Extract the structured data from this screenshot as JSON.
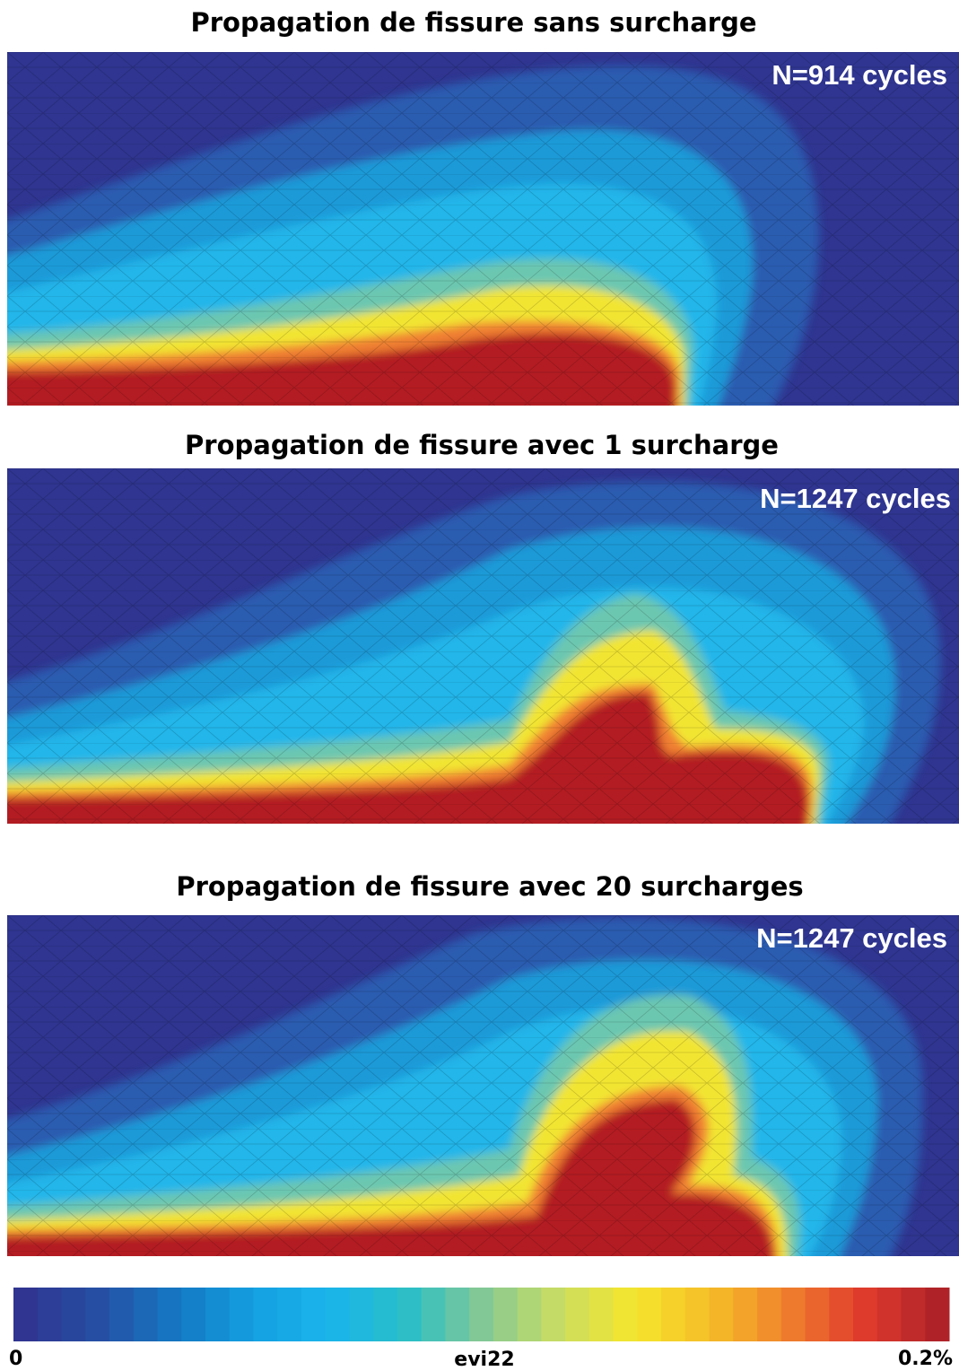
{
  "panels": [
    {
      "title": "Propagation de fissure sans surcharge",
      "cycles": "N=914 cycles"
    },
    {
      "title": "Propagation de fissure avec 1 surcharge",
      "cycles": "N=1247 cycles"
    },
    {
      "title": "Propagation de fissure avec 20 surcharges",
      "cycles": "N=1247 cycles"
    }
  ],
  "colorbar": {
    "min": "0",
    "label": "evi22",
    "max": "0.2%"
  }
}
